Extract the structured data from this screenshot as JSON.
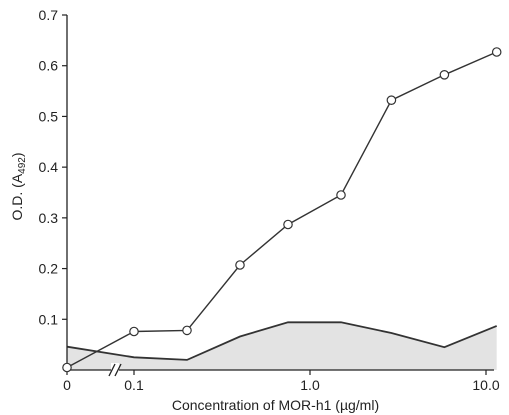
{
  "chart_data": {
    "type": "line",
    "title": "",
    "xlabel": "Concentration of MOR-h1 (µg/ml)",
    "ylabel": "O.D. (A",
    "ylabel_sub": "492",
    "ylabel_end": ")",
    "x_scale": "log10 with axis break after 0",
    "x_ticks": [
      {
        "value": 0,
        "label": "0"
      },
      {
        "value": 0.1,
        "label": "0.1"
      },
      {
        "value": 1.0,
        "label": "1.0"
      },
      {
        "value": 10.0,
        "label": "10.0"
      }
    ],
    "y_ticks": [
      {
        "value": 0.1,
        "label": "0.1"
      },
      {
        "value": 0.2,
        "label": "0.2"
      },
      {
        "value": 0.3,
        "label": "0.3"
      },
      {
        "value": 0.4,
        "label": "0.4"
      },
      {
        "value": 0.5,
        "label": "0.5"
      },
      {
        "value": 0.6,
        "label": "0.6"
      },
      {
        "value": 0.7,
        "label": "0.7"
      }
    ],
    "xlim": [
      0,
      12
    ],
    "ylim": [
      0,
      0.7
    ],
    "series": [
      {
        "style": "line-with-open-circles",
        "color": "#333333",
        "points": [
          {
            "x": 0,
            "y": 0.005
          },
          {
            "x": 0.1,
            "y": 0.076
          },
          {
            "x": 0.2,
            "y": 0.078
          },
          {
            "x": 0.4,
            "y": 0.207
          },
          {
            "x": 0.75,
            "y": 0.287
          },
          {
            "x": 1.5,
            "y": 0.345
          },
          {
            "x": 2.9,
            "y": 0.532
          },
          {
            "x": 5.8,
            "y": 0.582
          },
          {
            "x": 11.5,
            "y": 0.627
          }
        ]
      },
      {
        "style": "shaded-area",
        "color": "#333333",
        "fill": "#e3e3e3",
        "points": [
          {
            "x": 0,
            "y": 0.046
          },
          {
            "x": 0.1,
            "y": 0.025
          },
          {
            "x": 0.2,
            "y": 0.02
          },
          {
            "x": 0.4,
            "y": 0.066
          },
          {
            "x": 0.75,
            "y": 0.094
          },
          {
            "x": 1.5,
            "y": 0.094
          },
          {
            "x": 2.9,
            "y": 0.073
          },
          {
            "x": 5.8,
            "y": 0.045
          },
          {
            "x": 11.5,
            "y": 0.087
          }
        ]
      }
    ]
  }
}
